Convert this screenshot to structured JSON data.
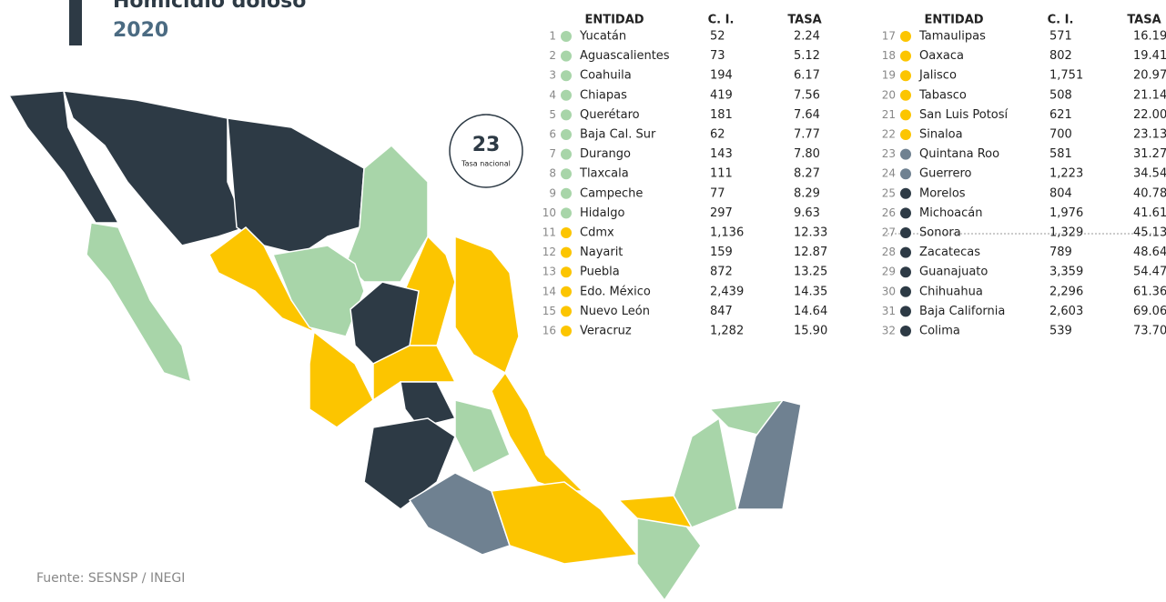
{
  "header": {
    "title": "Homicidio doloso",
    "year": "2020"
  },
  "badge": {
    "value": "23",
    "label": "Tasa nacional"
  },
  "source": "Fuente: SESNSP / INEGI",
  "table": {
    "columns": [
      "ENTIDAD",
      "C. I.",
      "TASA"
    ],
    "rows": [
      [
        "1",
        "Yucatán",
        "52",
        "2.24",
        "#a8d5a9"
      ],
      [
        "2",
        "Aguascalientes",
        "73",
        "5.12",
        "#a8d5a9"
      ],
      [
        "3",
        "Coahuila",
        "194",
        "6.17",
        "#a8d5a9"
      ],
      [
        "4",
        "Chiapas",
        "419",
        "7.56",
        "#a8d5a9"
      ],
      [
        "5",
        "Querétaro",
        "181",
        "7.64",
        "#a8d5a9"
      ],
      [
        "6",
        "Baja Cal. Sur",
        "62",
        "7.77",
        "#a8d5a9"
      ],
      [
        "7",
        "Durango",
        "143",
        "7.80",
        "#a8d5a9"
      ],
      [
        "8",
        "Tlaxcala",
        "111",
        "8.27",
        "#a8d5a9"
      ],
      [
        "9",
        "Campeche",
        "77",
        "8.29",
        "#a8d5a9"
      ],
      [
        "10",
        "Hidalgo",
        "297",
        "9.63",
        "#a8d5a9"
      ],
      [
        "11",
        "Cdmx",
        "1,136",
        "12.33",
        "#fcc500"
      ],
      [
        "12",
        "Nayarit",
        "159",
        "12.87",
        "#fcc500"
      ],
      [
        "13",
        "Puebla",
        "872",
        "13.25",
        "#fcc500"
      ],
      [
        "14",
        "Edo. México",
        "2,439",
        "14.35",
        "#fcc500"
      ],
      [
        "15",
        "Nuevo León",
        "847",
        "14.64",
        "#fcc500"
      ],
      [
        "16",
        "Veracruz",
        "1,282",
        "15.90",
        "#fcc500"
      ],
      [
        "17",
        "Tamaulipas",
        "571",
        "16.19",
        "#fcc500"
      ],
      [
        "18",
        "Oaxaca",
        "802",
        "19.41",
        "#fcc500"
      ],
      [
        "19",
        "Jalisco",
        "1,751",
        "20.97",
        "#fcc500"
      ],
      [
        "20",
        "Tabasco",
        "508",
        "21.14",
        "#fcc500"
      ],
      [
        "21",
        "San Luis Potosí",
        "621",
        "22.00",
        "#fcc500"
      ],
      [
        "22",
        "Sinaloa",
        "700",
        "23.13",
        "#fcc500"
      ],
      [
        "23",
        "Quintana Roo",
        "581",
        "31.27",
        "#6f8191"
      ],
      [
        "24",
        "Guerrero",
        "1,223",
        "34.54",
        "#6f8191"
      ],
      [
        "25",
        "Morelos",
        "804",
        "40.78",
        "#2d3a45"
      ],
      [
        "26",
        "Michoacán",
        "1,976",
        "41.61",
        "#2d3a45"
      ],
      [
        "27",
        "Sonora",
        "1,329",
        "45.13",
        "#2d3a45"
      ],
      [
        "28",
        "Zacatecas",
        "789",
        "48.64",
        "#2d3a45"
      ],
      [
        "29",
        "Guanajuato",
        "3,359",
        "54.47",
        "#2d3a45"
      ],
      [
        "30",
        "Chihuahua",
        "2,296",
        "61.36",
        "#2d3a45"
      ],
      [
        "31",
        "Baja California",
        "2,603",
        "69.06",
        "#2d3a45"
      ],
      [
        "32",
        "Colima",
        "539",
        "73.70",
        "#2d3a45"
      ]
    ]
  }
}
